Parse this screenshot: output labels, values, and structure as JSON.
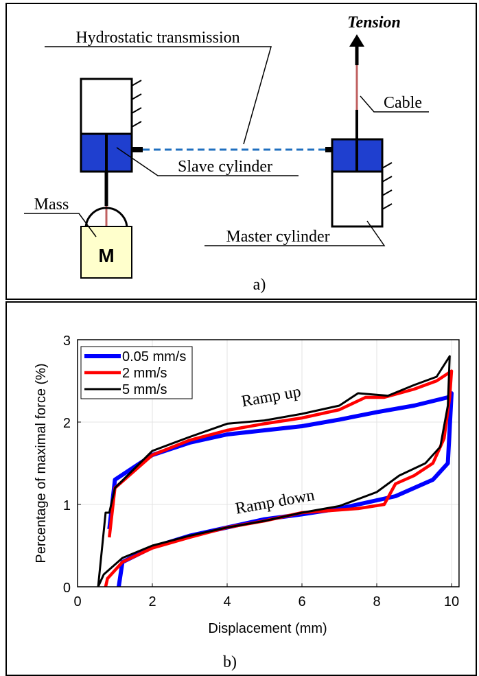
{
  "diagram": {
    "tension": "Tension",
    "transmission": "Hydrostatic transmission",
    "cable": "Cable",
    "slave": "Slave cylinder",
    "mass": "Mass",
    "mass_symbol": "M",
    "master": "Master cylinder",
    "caption": "a)"
  },
  "chart_data": {
    "type": "line",
    "caption": "b)",
    "xlabel": "Displacement (mm)",
    "ylabel": "Percentage of maximal force (%)",
    "xlim": [
      0,
      10.2
    ],
    "ylim": [
      0,
      3
    ],
    "xticks": [
      0,
      2,
      4,
      6,
      8,
      10
    ],
    "yticks": [
      0,
      1,
      2,
      3
    ],
    "grid": true,
    "legend": "upper left",
    "annotations": [
      {
        "text": "Ramp up",
        "x": 5.2,
        "y": 2.25
      },
      {
        "text": "Ramp down",
        "x": 5.3,
        "y": 0.97
      }
    ],
    "series": [
      {
        "name": "0.05 mm/s",
        "color": "#0000ff",
        "x": [
          0.85,
          1.0,
          2,
          3,
          4,
          5,
          6,
          7,
          8,
          9,
          9.9,
          10,
          9.9,
          9.5,
          8.5,
          8,
          7,
          6,
          5,
          4,
          3,
          2,
          1.2,
          1.1
        ],
        "values": [
          0.7,
          1.3,
          1.6,
          1.75,
          1.85,
          1.9,
          1.95,
          2.03,
          2.12,
          2.2,
          2.3,
          2.35,
          1.5,
          1.3,
          1.1,
          1.05,
          0.95,
          0.88,
          0.82,
          0.72,
          0.62,
          0.48,
          0.3,
          0
        ]
      },
      {
        "name": "2 mm/s",
        "color": "#ff0000",
        "x": [
          0.85,
          1.0,
          2,
          3,
          4,
          5,
          6,
          7,
          7.7,
          8.2,
          9,
          9.6,
          10,
          9.95,
          9.8,
          9.5,
          9,
          8.5,
          8.2,
          7.5,
          6,
          5,
          4,
          3,
          2,
          1.2,
          0.8,
          0.75
        ],
        "values": [
          0.6,
          1.2,
          1.6,
          1.78,
          1.9,
          1.98,
          2.05,
          2.15,
          2.3,
          2.3,
          2.4,
          2.5,
          2.62,
          2.3,
          1.8,
          1.5,
          1.35,
          1.25,
          1.0,
          0.95,
          0.9,
          0.8,
          0.72,
          0.6,
          0.47,
          0.3,
          0.1,
          0
        ]
      },
      {
        "name": "5 mm/s",
        "color": "#000000",
        "x": [
          0.55,
          0.75,
          0.85,
          1.0,
          2,
          3,
          4,
          5,
          6,
          7,
          7.5,
          8.3,
          9,
          9.6,
          9.95,
          9.9,
          9.7,
          9.3,
          8.6,
          8,
          7,
          6,
          5,
          4,
          3,
          2,
          1.2,
          0.7,
          0.55
        ],
        "values": [
          0,
          0.9,
          0.9,
          1.2,
          1.65,
          1.82,
          1.98,
          2.02,
          2.1,
          2.2,
          2.35,
          2.32,
          2.45,
          2.55,
          2.8,
          2.2,
          1.7,
          1.5,
          1.35,
          1.15,
          0.98,
          0.9,
          0.8,
          0.72,
          0.62,
          0.5,
          0.35,
          0.15,
          0
        ]
      }
    ]
  }
}
